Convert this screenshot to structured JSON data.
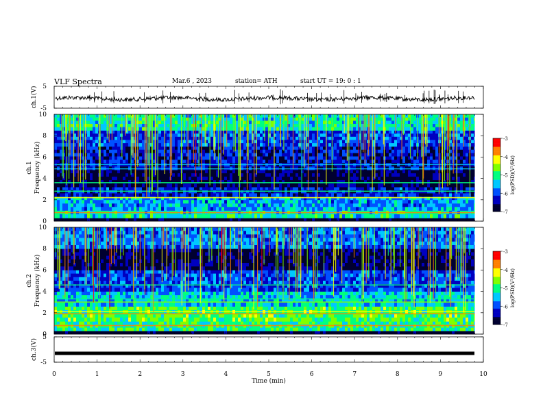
{
  "header": {
    "title": "VLF  Spectra",
    "date": "Mar.6  , 2023",
    "station": "station= ATH",
    "start": "start  UT  =    19: 0   : 1"
  },
  "colors": {
    "background": "#ffffff",
    "axes": "#000000",
    "colormap": [
      "#000030",
      "#0000c0",
      "#0050ff",
      "#00c8ff",
      "#00ff80",
      "#80ff00",
      "#ffff00",
      "#ff8000",
      "#ff0000",
      "#ffffff"
    ]
  },
  "chart_data": [
    {
      "type": "line",
      "name": "ch1-waveform",
      "ylabel": "ch.1(V)",
      "ylim": [
        -5,
        5
      ],
      "yticks": [
        "5",
        "-5"
      ],
      "xlim": [
        0,
        10
      ],
      "trace_level": 0,
      "trace_color": "#000000"
    },
    {
      "type": "heatmap",
      "name": "ch1-spectrogram",
      "ylabel_line1": "ch.1",
      "ylabel_line2": "Frequency (kHz)",
      "ylim": [
        0,
        10
      ],
      "yticks": [
        "0",
        "2",
        "4",
        "6",
        "8",
        "10"
      ],
      "xlim": [
        0,
        9.8
      ],
      "colorbar": {
        "label": "log(PSD)(V²/Hz)",
        "range": [
          -7,
          -3
        ],
        "ticks": [
          "-3",
          "-4",
          "-5",
          "-6",
          "-7"
        ]
      },
      "bands_khz": [
        {
          "from": 0.0,
          "to": 0.3,
          "level": -7
        },
        {
          "from": 0.3,
          "to": 1.0,
          "level": -5.2
        },
        {
          "from": 1.0,
          "to": 2.3,
          "level": -5.6
        },
        {
          "from": 2.3,
          "to": 3.2,
          "level": -6.2
        },
        {
          "from": 3.2,
          "to": 4.8,
          "level": -6.8
        },
        {
          "from": 4.8,
          "to": 7.0,
          "level": -6.3
        },
        {
          "from": 7.0,
          "to": 8.5,
          "level": -6.0
        },
        {
          "from": 8.5,
          "to": 10.0,
          "level": -5.2
        }
      ],
      "lines_khz": [
        {
          "f": 0.8,
          "level": -3.6
        },
        {
          "f": 2.2,
          "level": -4.2
        },
        {
          "f": 2.8,
          "level": -4.8
        },
        {
          "f": 3.6,
          "level": -5.0
        },
        {
          "f": 4.9,
          "level": -5.3
        },
        {
          "f": 5.3,
          "level": -5.4
        }
      ]
    },
    {
      "type": "heatmap",
      "name": "ch2-spectrogram",
      "ylabel_line1": "ch.2",
      "ylabel_line2": "Frequency (kHz)",
      "ylim": [
        0,
        10
      ],
      "yticks": [
        "0",
        "2",
        "4",
        "6",
        "8",
        "10"
      ],
      "xlim": [
        0,
        9.8
      ],
      "colorbar": {
        "label": "log(PSD)(V²/Hz)",
        "range": [
          -7,
          -3
        ],
        "ticks": [
          "-3",
          "-4",
          "-5",
          "-6",
          "-7"
        ]
      },
      "bands_khz": [
        {
          "from": 0.0,
          "to": 0.3,
          "level": -7
        },
        {
          "from": 0.3,
          "to": 1.2,
          "level": -5.0
        },
        {
          "from": 1.2,
          "to": 2.6,
          "level": -4.8
        },
        {
          "from": 2.6,
          "to": 4.0,
          "level": -5.4
        },
        {
          "from": 4.0,
          "to": 6.0,
          "level": -6.0
        },
        {
          "from": 6.0,
          "to": 8.0,
          "level": -6.7
        },
        {
          "from": 8.0,
          "to": 10.0,
          "level": -5.8
        }
      ],
      "lines_khz": [
        {
          "f": 0.8,
          "level": -3.5
        },
        {
          "f": 1.9,
          "level": -3.8
        },
        {
          "f": 2.1,
          "level": -4.0
        },
        {
          "f": 3.0,
          "level": -4.6
        },
        {
          "f": 3.3,
          "level": -4.8
        },
        {
          "f": 4.6,
          "level": -5.2
        }
      ]
    },
    {
      "type": "line",
      "name": "ch3-waveform",
      "ylabel": "ch.3(V)",
      "ylim": [
        -5,
        5
      ],
      "yticks": [
        "5",
        "-5"
      ],
      "xlim": [
        0,
        10
      ],
      "trace_level": -1.5,
      "trace_color": "#000000",
      "xlabel": "Time  (min)",
      "xticks": [
        "0",
        "1",
        "2",
        "3",
        "4",
        "5",
        "6",
        "7",
        "8",
        "9",
        "10"
      ]
    }
  ]
}
